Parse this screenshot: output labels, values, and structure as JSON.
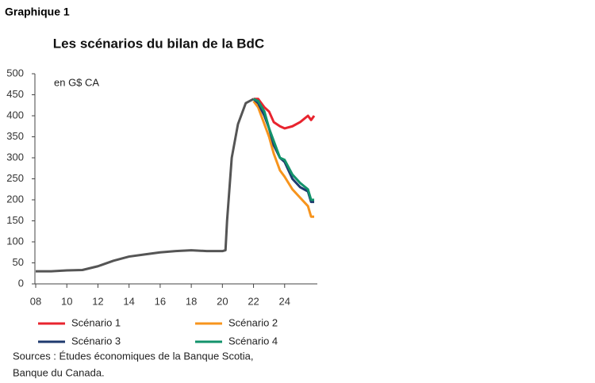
{
  "header": {
    "label": "Graphique 1"
  },
  "chart_data": {
    "type": "line",
    "title": "Les scénarios du bilan de la BdC",
    "annotation": "en G$ CA",
    "xlim": [
      2008,
      2026
    ],
    "ylim": [
      0,
      500
    ],
    "xticks": [
      {
        "value": 2008,
        "label": "08"
      },
      {
        "value": 2010,
        "label": "10"
      },
      {
        "value": 2012,
        "label": "12"
      },
      {
        "value": 2014,
        "label": "14"
      },
      {
        "value": 2016,
        "label": "16"
      },
      {
        "value": 2018,
        "label": "18"
      },
      {
        "value": 2020,
        "label": "20"
      },
      {
        "value": 2022,
        "label": "22"
      },
      {
        "value": 2024,
        "label": "24"
      }
    ],
    "yticks": [
      0,
      50,
      100,
      150,
      200,
      250,
      300,
      350,
      400,
      450,
      500
    ],
    "series": [
      {
        "color": "#555555",
        "x": [
          2008,
          2009,
          2010,
          2011,
          2012,
          2013,
          2014,
          2015,
          2016,
          2017,
          2018,
          2019,
          2020,
          2020.2,
          2020.3,
          2020.6,
          2021,
          2021.5,
          2022
        ],
        "values": [
          30,
          30,
          32,
          33,
          42,
          55,
          65,
          70,
          75,
          78,
          80,
          78,
          78,
          80,
          150,
          300,
          380,
          430,
          440
        ]
      },
      {
        "name": "Scénario 1",
        "color": "#e8242e",
        "x": [
          2022,
          2022.3,
          2022.7,
          2023,
          2023.3,
          2023.7,
          2024,
          2024.5,
          2025,
          2025.5,
          2025.7,
          2025.9
        ],
        "values": [
          440,
          440,
          420,
          410,
          385,
          375,
          370,
          375,
          385,
          400,
          390,
          400
        ]
      },
      {
        "name": "Scénario 2",
        "color": "#f7941d",
        "x": [
          2022,
          2022.3,
          2022.7,
          2023,
          2023.3,
          2023.7,
          2024,
          2024.5,
          2025,
          2025.5,
          2025.7,
          2025.9
        ],
        "values": [
          435,
          420,
          380,
          350,
          310,
          270,
          255,
          225,
          205,
          185,
          160,
          160
        ]
      },
      {
        "name": "Scénario 3",
        "color": "#1f3a6e",
        "x": [
          2022,
          2022.3,
          2022.7,
          2023,
          2023.3,
          2023.7,
          2024,
          2024.5,
          2025,
          2025.5,
          2025.7,
          2025.9
        ],
        "values": [
          440,
          430,
          400,
          370,
          330,
          300,
          290,
          250,
          230,
          220,
          195,
          195
        ]
      },
      {
        "name": "Scénario 4",
        "color": "#13936b",
        "x": [
          2022,
          2022.3,
          2022.7,
          2023,
          2023.3,
          2023.7,
          2024,
          2024.5,
          2025,
          2025.5,
          2025.7,
          2025.9
        ],
        "values": [
          440,
          435,
          410,
          370,
          340,
          300,
          295,
          260,
          240,
          225,
          200,
          200
        ]
      }
    ],
    "sources": [
      "Sources : Études économiques de la Banque Scotia,",
      "Banque du Canada."
    ]
  }
}
